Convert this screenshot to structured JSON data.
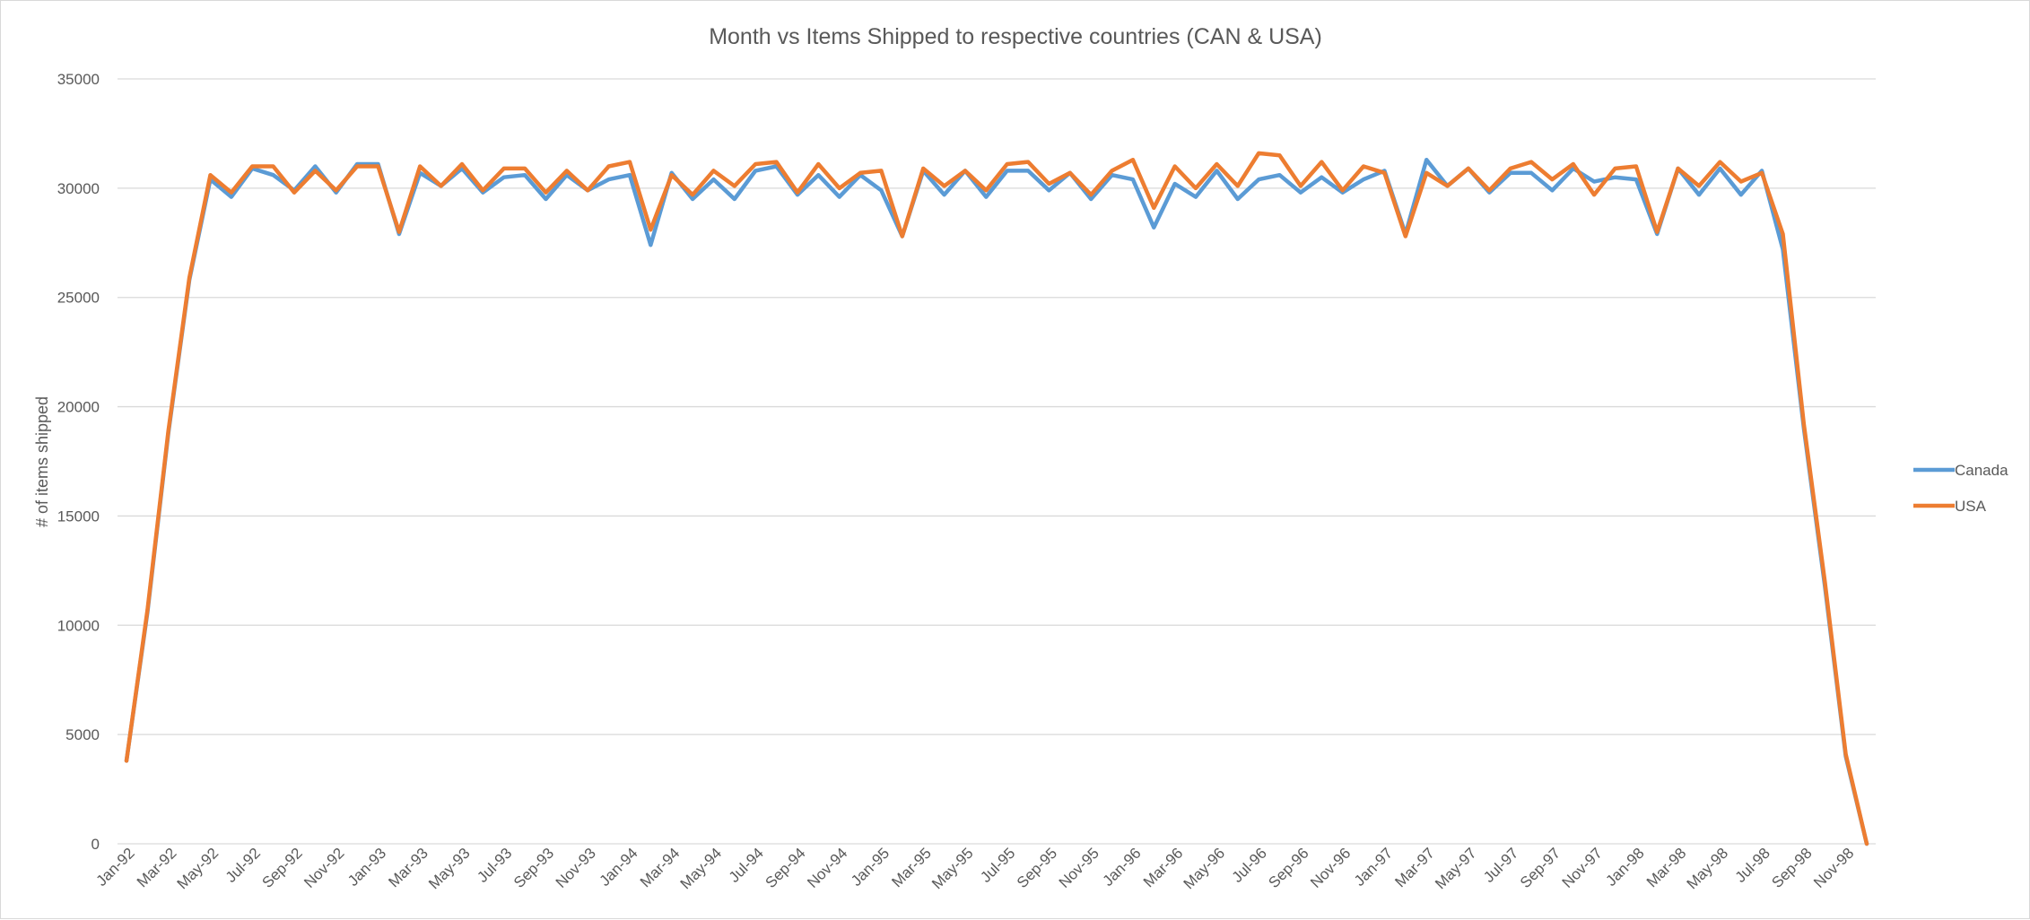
{
  "chart_data": {
    "type": "line",
    "title": "Month vs Items Shipped to respective countries (CAN & USA)",
    "xlabel": "",
    "ylabel": "# of items shipped",
    "ylim": [
      0,
      35000
    ],
    "yticks": [
      0,
      5000,
      10000,
      15000,
      20000,
      25000,
      30000,
      35000
    ],
    "grid": true,
    "legend_position": "right",
    "x_tick_labels": [
      "Jan-92",
      "Mar-92",
      "May-92",
      "Jul-92",
      "Sep-92",
      "Nov-92",
      "Jan-93",
      "Mar-93",
      "May-93",
      "Jul-93",
      "Sep-93",
      "Nov-93",
      "Jan-94",
      "Mar-94",
      "May-94",
      "Jul-94",
      "Sep-94",
      "Nov-94",
      "Jan-95",
      "Mar-95",
      "May-95",
      "Jul-95",
      "Sep-95",
      "Nov-95",
      "Jan-96",
      "Mar-96",
      "May-96",
      "Jul-96",
      "Sep-96",
      "Nov-96",
      "Jan-97",
      "Mar-97",
      "May-97",
      "Jul-97",
      "Sep-97",
      "Nov-97",
      "Jan-98",
      "Mar-98",
      "May-98",
      "Jul-98",
      "Sep-98",
      "Nov-98"
    ],
    "x": [
      "Jan-92",
      "Feb-92",
      "Mar-92",
      "Apr-92",
      "May-92",
      "Jun-92",
      "Jul-92",
      "Aug-92",
      "Sep-92",
      "Oct-92",
      "Nov-92",
      "Dec-92",
      "Jan-93",
      "Feb-93",
      "Mar-93",
      "Apr-93",
      "May-93",
      "Jun-93",
      "Jul-93",
      "Aug-93",
      "Sep-93",
      "Oct-93",
      "Nov-93",
      "Dec-93",
      "Jan-94",
      "Feb-94",
      "Mar-94",
      "Apr-94",
      "May-94",
      "Jun-94",
      "Jul-94",
      "Aug-94",
      "Sep-94",
      "Oct-94",
      "Nov-94",
      "Dec-94",
      "Jan-95",
      "Feb-95",
      "Mar-95",
      "Apr-95",
      "May-95",
      "Jun-95",
      "Jul-95",
      "Aug-95",
      "Sep-95",
      "Oct-95",
      "Nov-95",
      "Dec-95",
      "Jan-96",
      "Feb-96",
      "Mar-96",
      "Apr-96",
      "May-96",
      "Jun-96",
      "Jul-96",
      "Aug-96",
      "Sep-96",
      "Oct-96",
      "Nov-96",
      "Dec-96",
      "Jan-97",
      "Feb-97",
      "Mar-97",
      "Apr-97",
      "May-97",
      "Jun-97",
      "Jul-97",
      "Aug-97",
      "Sep-97",
      "Oct-97",
      "Nov-97",
      "Dec-97",
      "Jan-98",
      "Feb-98",
      "Mar-98",
      "Apr-98",
      "May-98",
      "Jun-98",
      "Jul-98",
      "Aug-98",
      "Sep-98",
      "Oct-98",
      "Nov-98",
      "Dec-98"
    ],
    "series": [
      {
        "name": "Canada",
        "color": "#5b9bd5",
        "values": [
          3800,
          10600,
          18800,
          25800,
          30400,
          29600,
          30900,
          30600,
          29900,
          31000,
          29800,
          31100,
          31100,
          27900,
          30700,
          30100,
          30900,
          29800,
          30500,
          30600,
          29500,
          30600,
          29900,
          30400,
          30600,
          27400,
          30700,
          29500,
          30400,
          29500,
          30800,
          31000,
          29700,
          30600,
          29600,
          30600,
          29900,
          27800,
          30800,
          29700,
          30800,
          29600,
          30800,
          30800,
          29900,
          30700,
          29500,
          30600,
          30400,
          28200,
          30200,
          29600,
          30800,
          29500,
          30400,
          30600,
          29800,
          30500,
          29800,
          30400,
          30800,
          27900,
          31300,
          30100,
          30900,
          29800,
          30700,
          30700,
          29900,
          30900,
          30300,
          30500,
          30400,
          27900,
          30900,
          29700,
          30900,
          29700,
          30800,
          27200,
          19000,
          11800,
          4000,
          0
        ]
      },
      {
        "name": "USA",
        "color": "#ed7d31",
        "values": [
          3800,
          10700,
          18900,
          25900,
          30600,
          29800,
          31000,
          31000,
          29800,
          30800,
          29900,
          31000,
          31000,
          28000,
          31000,
          30100,
          31100,
          29900,
          30900,
          30900,
          29800,
          30800,
          29900,
          31000,
          31200,
          28100,
          30600,
          29700,
          30800,
          30100,
          31100,
          31200,
          29800,
          31100,
          30000,
          30700,
          30800,
          27800,
          30900,
          30100,
          30800,
          29900,
          31100,
          31200,
          30200,
          30700,
          29700,
          30800,
          31300,
          29100,
          31000,
          30000,
          31100,
          30100,
          31600,
          31500,
          30100,
          31200,
          29900,
          31000,
          30700,
          27800,
          30700,
          30100,
          30900,
          29900,
          30900,
          31200,
          30400,
          31100,
          29700,
          30900,
          31000,
          28000,
          30900,
          30100,
          31200,
          30300,
          30700,
          27900,
          19200,
          12000,
          4100,
          0
        ]
      }
    ]
  }
}
